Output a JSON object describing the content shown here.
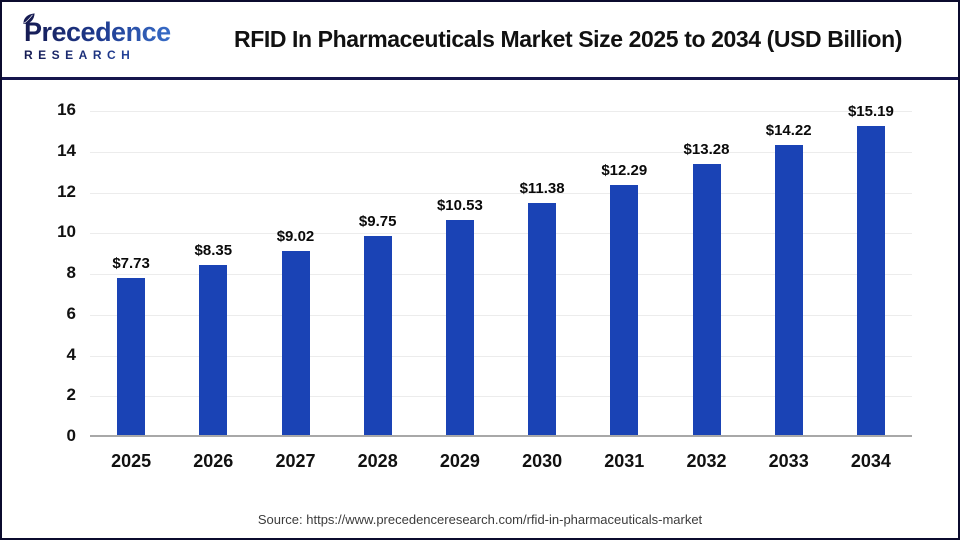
{
  "header": {
    "logo_line1": "Precedence",
    "logo_line2": "RESEARCH",
    "title": "RFID In Pharmaceuticals Market Size 2025 to 2034 (USD Billion)"
  },
  "chart_data": {
    "type": "bar",
    "title": "RFID In Pharmaceuticals Market Size 2025 to 2034 (USD Billion)",
    "categories": [
      "2025",
      "2026",
      "2027",
      "2028",
      "2029",
      "2030",
      "2031",
      "2032",
      "2033",
      "2034"
    ],
    "values": [
      7.73,
      8.35,
      9.02,
      9.75,
      10.53,
      11.38,
      12.29,
      13.28,
      14.22,
      15.19
    ],
    "value_labels": [
      "$7.73",
      "$8.35",
      "$9.02",
      "$9.75",
      "$10.53",
      "$11.38",
      "$12.29",
      "$13.28",
      "$14.22",
      "$15.19"
    ],
    "xlabel": "",
    "ylabel": "",
    "ylim": [
      0,
      16
    ],
    "yticks": [
      0,
      2,
      4,
      6,
      8,
      10,
      12,
      14,
      16
    ],
    "grid": true,
    "legend": "none",
    "bar_color": "#1a43b5"
  },
  "footer": {
    "source": "Source: https://www.precedenceresearch.com/rfid-in-pharmaceuticals-market"
  },
  "colors": {
    "bar": "#1a43b5",
    "separator": "#15154d",
    "outer_border": "#0b0b2e",
    "gridline": "#ececec",
    "axis_baseline": "#a8a8a8",
    "text": "#111111",
    "source_text": "#3c3c3c",
    "logo_navy": "#161b52",
    "logo_blue": "#3f7bd8"
  }
}
